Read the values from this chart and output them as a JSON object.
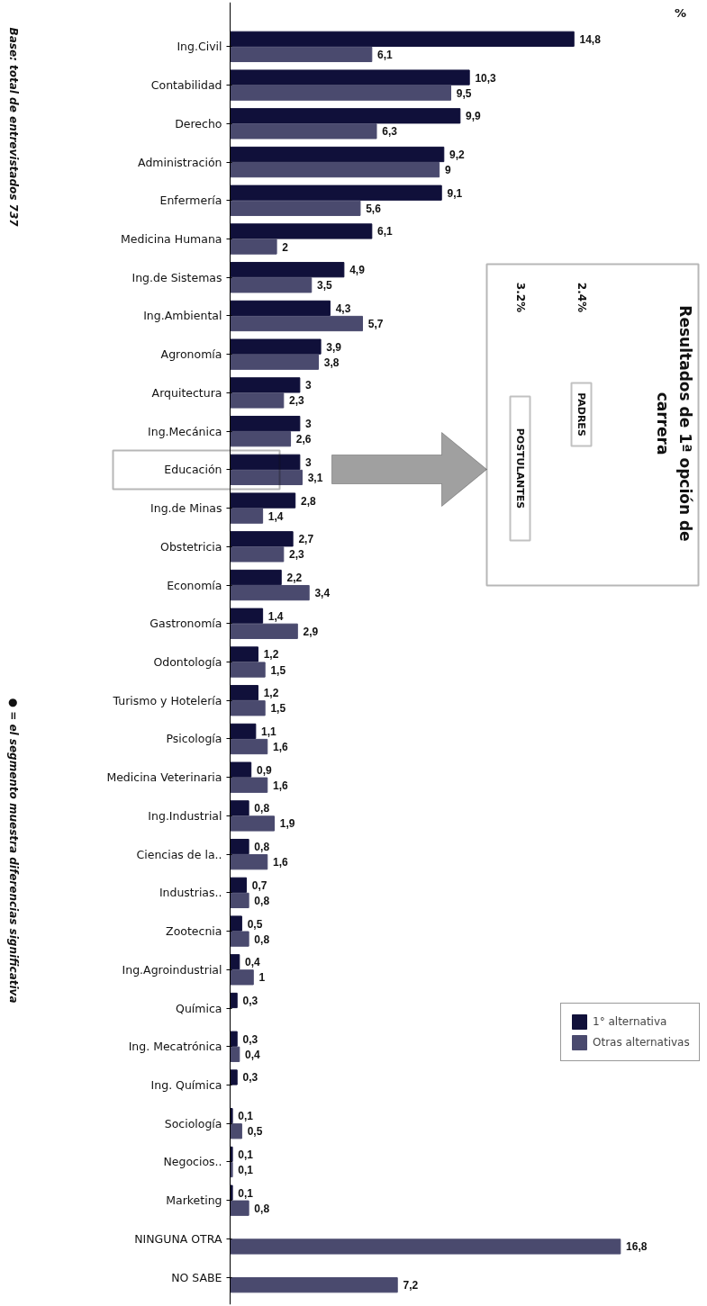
{
  "chart_data": {
    "type": "bar",
    "orientation": "horizontal",
    "legend": "bottom right",
    "grid": false,
    "categories": [
      "Ing.Civil",
      "Contabilidad",
      "Derecho",
      "Administración",
      "Enfermería",
      "Medicina Humana",
      "Ing.de Sistemas",
      "Ing.Ambiental",
      "Agronomía",
      "Arquitectura",
      "Ing.Mecánica",
      "Educación",
      "Ing.de Minas",
      "Obstetricia",
      "Economía",
      "Gastronomía",
      "Odontología",
      "Turismo y Hotelería",
      "Psicología",
      "Medicina Veterinaria",
      "Ing.Industrial",
      "Ciencias de la..",
      "Industrias..",
      "Zootecnia",
      "Ing.Agroindustrial",
      "Química",
      "Ing. Mecatrónica",
      "Ing. Química",
      "Sociología",
      "Negocios..",
      "Marketing",
      "NINGUNA OTRA",
      "NO SABE"
    ],
    "series": [
      {
        "name": "1° alternativa",
        "color": "#10103a",
        "values": [
          14.8,
          10.3,
          9.9,
          9.2,
          9.1,
          6.1,
          4.9,
          4.3,
          3.9,
          3,
          3,
          3,
          2.8,
          2.7,
          2.2,
          1.4,
          1.2,
          1.2,
          1.1,
          0.9,
          0.8,
          0.8,
          0.7,
          0.5,
          0.4,
          0.3,
          0.3,
          0.3,
          0.1,
          0.1,
          0.1,
          null,
          null
        ],
        "value_labels": [
          "14,8",
          "10,3",
          "9,9",
          "9,2",
          "9,1",
          "6,1",
          "4,9",
          "4,3",
          "3,9",
          "3",
          "3",
          "3",
          "2,8",
          "2,7",
          "2,2",
          "1,4",
          "1,2",
          "1,2",
          "1,1",
          "0,9",
          "0,8",
          "0,8",
          "0,7",
          "0,5",
          "0,4",
          "0,3",
          "0,3",
          "0,3",
          "0,1",
          "0,1",
          "0,1",
          null,
          null
        ]
      },
      {
        "name": "Otras alternativas",
        "color": "#4a4a6e",
        "values": [
          6.1,
          9.5,
          6.3,
          9,
          5.6,
          2,
          3.5,
          5.7,
          3.8,
          2.3,
          2.6,
          3.1,
          1.4,
          2.3,
          3.4,
          2.9,
          1.5,
          1.5,
          1.6,
          1.6,
          1.9,
          1.6,
          0.8,
          0.8,
          1,
          null,
          0.4,
          null,
          0.5,
          0.1,
          0.8,
          16.8,
          7.2
        ],
        "value_labels": [
          "6,1",
          "9,5",
          "6,3",
          "9",
          "5,6",
          "2",
          "3,5",
          "5,7",
          "3,8",
          "2,3",
          "2,6",
          "3,1",
          "1,4",
          "2,3",
          "3,4",
          "2,9",
          "1,5",
          "1,5",
          "1,6",
          "1,6",
          "1,9",
          "1,6",
          "0,8",
          "0,8",
          "1",
          null,
          "0,4",
          null,
          "0,5",
          "0,1",
          "0,8",
          "16,8",
          "7,2"
        ]
      }
    ],
    "annotations": [
      "%",
      "Base: total de entrevistados 737",
      "● = el segmento muestra diferencias significativa",
      "Resultados de 1ª opción de",
      "carrera",
      "2.4%",
      "3.2%",
      "PADRES",
      "POSTULANTES"
    ]
  }
}
